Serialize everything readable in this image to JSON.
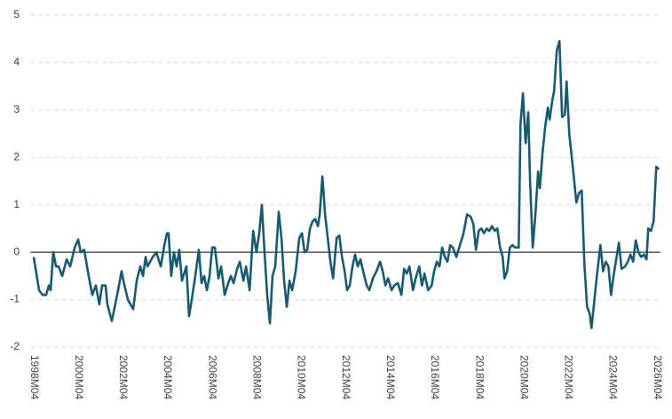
{
  "chart_data": {
    "type": "line",
    "x": [
      1998.25,
      1998.49,
      1998.65,
      1998.81,
      1998.93,
      1999.01,
      1999.13,
      1999.25,
      1999.37,
      1999.53,
      1999.73,
      1999.89,
      2000.09,
      2000.25,
      2000.36,
      2000.52,
      2000.72,
      2000.88,
      2001.04,
      2001.2,
      2001.32,
      2001.48,
      2001.56,
      2001.76,
      2002.0,
      2002.2,
      2002.28,
      2002.48,
      2002.72,
      2002.88,
      2003.04,
      2003.16,
      2003.28,
      2003.36,
      2003.6,
      2003.76,
      2003.96,
      2004.12,
      2004.24,
      2004.31,
      2004.43,
      2004.55,
      2004.67,
      2004.79,
      2004.91,
      2005.11,
      2005.23,
      2005.35,
      2005.51,
      2005.67,
      2005.79,
      2005.91,
      2006.03,
      2006.15,
      2006.27,
      2006.39,
      2006.55,
      2006.67,
      2006.83,
      2006.99,
      2007.11,
      2007.23,
      2007.39,
      2007.51,
      2007.67,
      2007.79,
      2007.95,
      2008.11,
      2008.26,
      2008.38,
      2008.5,
      2008.62,
      2008.74,
      2008.86,
      2008.98,
      2009.1,
      2009.26,
      2009.38,
      2009.5,
      2009.62,
      2009.74,
      2009.86,
      2010.02,
      2010.18,
      2010.3,
      2010.42,
      2010.54,
      2010.66,
      2010.78,
      2010.9,
      2011.02,
      2011.1,
      2011.22,
      2011.34,
      2011.46,
      2011.58,
      2011.7,
      2011.86,
      2011.98,
      2012.1,
      2012.22,
      2012.33,
      2012.45,
      2012.57,
      2012.69,
      2012.81,
      2012.93,
      2013.05,
      2013.21,
      2013.33,
      2013.49,
      2013.65,
      2013.81,
      2013.93,
      2014.05,
      2014.17,
      2014.33,
      2014.45,
      2014.61,
      2014.77,
      2014.89,
      2015.01,
      2015.13,
      2015.29,
      2015.41,
      2015.57,
      2015.69,
      2015.81,
      2015.97,
      2016.13,
      2016.24,
      2016.36,
      2016.48,
      2016.6,
      2016.72,
      2016.84,
      2016.96,
      2017.08,
      2017.24,
      2017.4,
      2017.56,
      2017.72,
      2017.88,
      2018.0,
      2018.12,
      2018.24,
      2018.36,
      2018.48,
      2018.6,
      2018.72,
      2018.84,
      2018.96,
      2019.08,
      2019.2,
      2019.32,
      2019.4,
      2019.52,
      2019.64,
      2019.76,
      2019.88,
      2020.04,
      2020.12,
      2020.23,
      2020.35,
      2020.47,
      2020.55,
      2020.67,
      2020.79,
      2020.91,
      2020.99,
      2021.11,
      2021.23,
      2021.35,
      2021.43,
      2021.55,
      2021.63,
      2021.75,
      2021.87,
      2021.99,
      2022.11,
      2022.19,
      2022.31,
      2022.47,
      2022.63,
      2022.75,
      2022.87,
      2022.99,
      2023.11,
      2023.23,
      2023.31,
      2023.43,
      2023.55,
      2023.71,
      2023.83,
      2023.95,
      2024.07,
      2024.19,
      2024.3,
      2024.42,
      2024.54,
      2024.66,
      2024.82,
      2024.94,
      2025.06,
      2025.18,
      2025.3,
      2025.42,
      2025.54,
      2025.66,
      2025.78,
      2025.86,
      2025.98,
      2026.1,
      2026.22,
      2026.34
    ],
    "values": [
      -0.1,
      -0.8,
      -0.9,
      -0.9,
      -0.7,
      -0.8,
      0.0,
      -0.3,
      -0.3,
      -0.5,
      -0.15,
      -0.3,
      0.1,
      0.27,
      0.0,
      0.05,
      -0.5,
      -0.9,
      -0.7,
      -1.1,
      -0.7,
      -0.7,
      -1.1,
      -1.45,
      -0.9,
      -0.4,
      -0.6,
      -1.0,
      -1.2,
      -0.6,
      -0.3,
      -0.5,
      -0.1,
      -0.3,
      -0.1,
      0.0,
      -0.3,
      0.15,
      0.4,
      0.4,
      -0.5,
      0.0,
      -0.3,
      0.05,
      -0.6,
      -0.3,
      -1.35,
      -1.0,
      -0.5,
      0.05,
      -0.65,
      -0.5,
      -0.8,
      -0.5,
      0.1,
      0.1,
      -0.55,
      -0.3,
      -0.9,
      -0.65,
      -0.5,
      -0.65,
      -0.35,
      -0.2,
      -0.6,
      -0.3,
      -0.8,
      0.45,
      0.0,
      0.4,
      1.0,
      0.0,
      -0.9,
      -1.5,
      -0.5,
      -0.3,
      0.85,
      0.3,
      -0.6,
      -1.15,
      -0.6,
      -0.8,
      -0.4,
      0.3,
      0.4,
      0.0,
      0.05,
      0.5,
      0.65,
      0.7,
      0.55,
      0.8,
      1.6,
      0.8,
      0.3,
      -0.2,
      -0.55,
      0.3,
      0.35,
      -0.1,
      -0.4,
      -0.8,
      -0.7,
      -0.3,
      -0.05,
      -0.3,
      -0.15,
      -0.4,
      -0.7,
      -0.8,
      -0.55,
      -0.4,
      -0.2,
      -0.4,
      -0.7,
      -0.55,
      -0.8,
      -0.7,
      -0.65,
      -0.9,
      -0.35,
      -0.45,
      -0.3,
      -0.8,
      -0.55,
      -0.3,
      -0.7,
      -0.45,
      -0.8,
      -0.7,
      -0.4,
      -0.2,
      -0.3,
      0.1,
      -0.1,
      -0.2,
      0.15,
      0.1,
      -0.1,
      0.15,
      0.4,
      0.8,
      0.75,
      0.6,
      0.05,
      0.45,
      0.5,
      0.4,
      0.5,
      0.45,
      0.55,
      0.45,
      0.5,
      0.1,
      -0.1,
      -0.55,
      -0.4,
      0.1,
      0.15,
      0.1,
      0.1,
      2.7,
      3.35,
      2.3,
      2.95,
      1.5,
      0.1,
      0.8,
      1.7,
      1.35,
      2.1,
      2.65,
      3.05,
      2.8,
      3.2,
      3.4,
      4.25,
      4.45,
      2.85,
      2.9,
      3.6,
      2.5,
      1.8,
      1.05,
      1.25,
      1.3,
      -0.25,
      -1.15,
      -1.3,
      -1.6,
      -1.05,
      -0.5,
      0.15,
      -0.4,
      -0.2,
      -0.3,
      -0.9,
      -0.5,
      -0.15,
      0.2,
      -0.35,
      -0.3,
      -0.2,
      -0.05,
      -0.2,
      0.25,
      0.0,
      -0.1,
      -0.05,
      -0.15,
      0.5,
      0.45,
      0.65,
      1.8,
      1.75
    ],
    "color": "#175a73",
    "xlim": [
      1998.1,
      2026.4
    ],
    "xticks": [
      {
        "value": 1998.25,
        "label": "1998M04"
      },
      {
        "value": 2000.25,
        "label": "2000M04"
      },
      {
        "value": 2002.25,
        "label": "2002M04"
      },
      {
        "value": 2004.25,
        "label": "2004M04"
      },
      {
        "value": 2006.25,
        "label": "2006M04"
      },
      {
        "value": 2008.25,
        "label": "2008M04"
      },
      {
        "value": 2010.25,
        "label": "2010M04"
      },
      {
        "value": 2012.25,
        "label": "2012M04"
      },
      {
        "value": 2014.25,
        "label": "2014M04"
      },
      {
        "value": 2016.25,
        "label": "2016M04"
      },
      {
        "value": 2018.25,
        "label": "2018M04"
      },
      {
        "value": 2020.25,
        "label": "2020M04"
      },
      {
        "value": 2022.25,
        "label": "2022M04"
      },
      {
        "value": 2024.25,
        "label": "2024M04"
      },
      {
        "value": 2026.25,
        "label": "2026M04"
      }
    ],
    "ylim": [
      -2,
      5
    ],
    "yticks": [
      -2,
      -1,
      0,
      1,
      2,
      3,
      4,
      5
    ],
    "grid": true
  }
}
